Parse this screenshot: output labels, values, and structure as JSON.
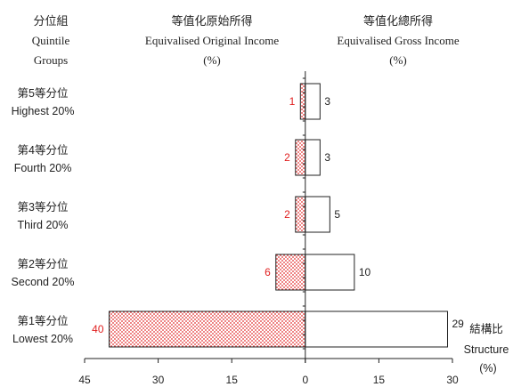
{
  "headers": {
    "groups": [
      "分位組",
      "Quintile",
      "Groups"
    ],
    "original": [
      "等值化原始所得",
      "Equivalised Original Income",
      "(%)"
    ],
    "gross": [
      "等值化總所得",
      "Equivalised Gross Income",
      "(%)"
    ]
  },
  "side_label": [
    "結構比",
    "Structure",
    "(%)"
  ],
  "chart_data": {
    "type": "bar",
    "orientation": "horizontal-diverging",
    "categories": [
      [
        "第5等分位",
        "Highest 20%"
      ],
      [
        "第4等分位",
        "Fourth 20%"
      ],
      [
        "第3等分位",
        "Third 20%"
      ],
      [
        "第2等分位",
        "Second 20%"
      ],
      [
        "第1等分位",
        "Lowest 20%"
      ]
    ],
    "series": [
      {
        "name": "等值化原始所得 Equivalised Original Income (%)",
        "side": "left",
        "values": [
          1,
          2,
          2,
          6,
          40
        ],
        "color": "#e02020"
      },
      {
        "name": "等值化總所得 Equivalised Gross Income (%)",
        "side": "right",
        "values": [
          3,
          3,
          5,
          10,
          29
        ],
        "color": "#222222"
      }
    ],
    "xlim": [
      -45,
      30
    ],
    "xticks": [
      -45,
      -30,
      -15,
      0,
      15,
      30
    ],
    "xtick_labels": [
      "45",
      "30",
      "15",
      "0",
      "15",
      "30"
    ],
    "xlabel": "結構比 Structure (%)",
    "grid": false,
    "legend": "none"
  }
}
